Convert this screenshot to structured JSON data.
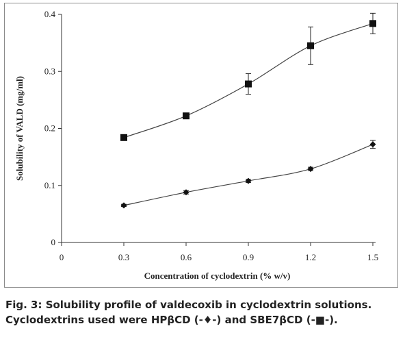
{
  "chart_data": {
    "type": "line",
    "xlabel": "Concentration of cyclodextrin (% w/v)",
    "ylabel": "Solubility of VALD (mg/ml)",
    "xlim": [
      0,
      1.5
    ],
    "ylim": [
      0,
      0.4
    ],
    "x_ticks": [
      "0",
      "0.3",
      "0.6",
      "0.9",
      "1.2",
      "1.5"
    ],
    "y_ticks": [
      "0",
      "0.1",
      "0.2",
      "0.3",
      "0.4"
    ],
    "grid": false,
    "series": [
      {
        "marker": "diamond",
        "x": [
          0.3,
          0.6,
          0.9,
          1.2,
          1.5
        ],
        "values": [
          0.065,
          0.088,
          0.108,
          0.129,
          0.172
        ],
        "errors": [
          0.002,
          0.003,
          0.003,
          0.003,
          0.007
        ]
      },
      {
        "marker": "square",
        "x": [
          0.3,
          0.6,
          0.9,
          1.2,
          1.5
        ],
        "values": [
          0.184,
          0.222,
          0.278,
          0.345,
          0.384
        ],
        "errors": [
          0.005,
          0.005,
          0.018,
          0.033,
          0.018
        ]
      }
    ]
  },
  "caption": {
    "line1": "Fig. 3: Solubility profile of valdecoxib in cyclodextrin solutions.",
    "line2": "Cyclodextrins used were HPβCD (-♦-) and SBE7βCD (-■-)."
  }
}
